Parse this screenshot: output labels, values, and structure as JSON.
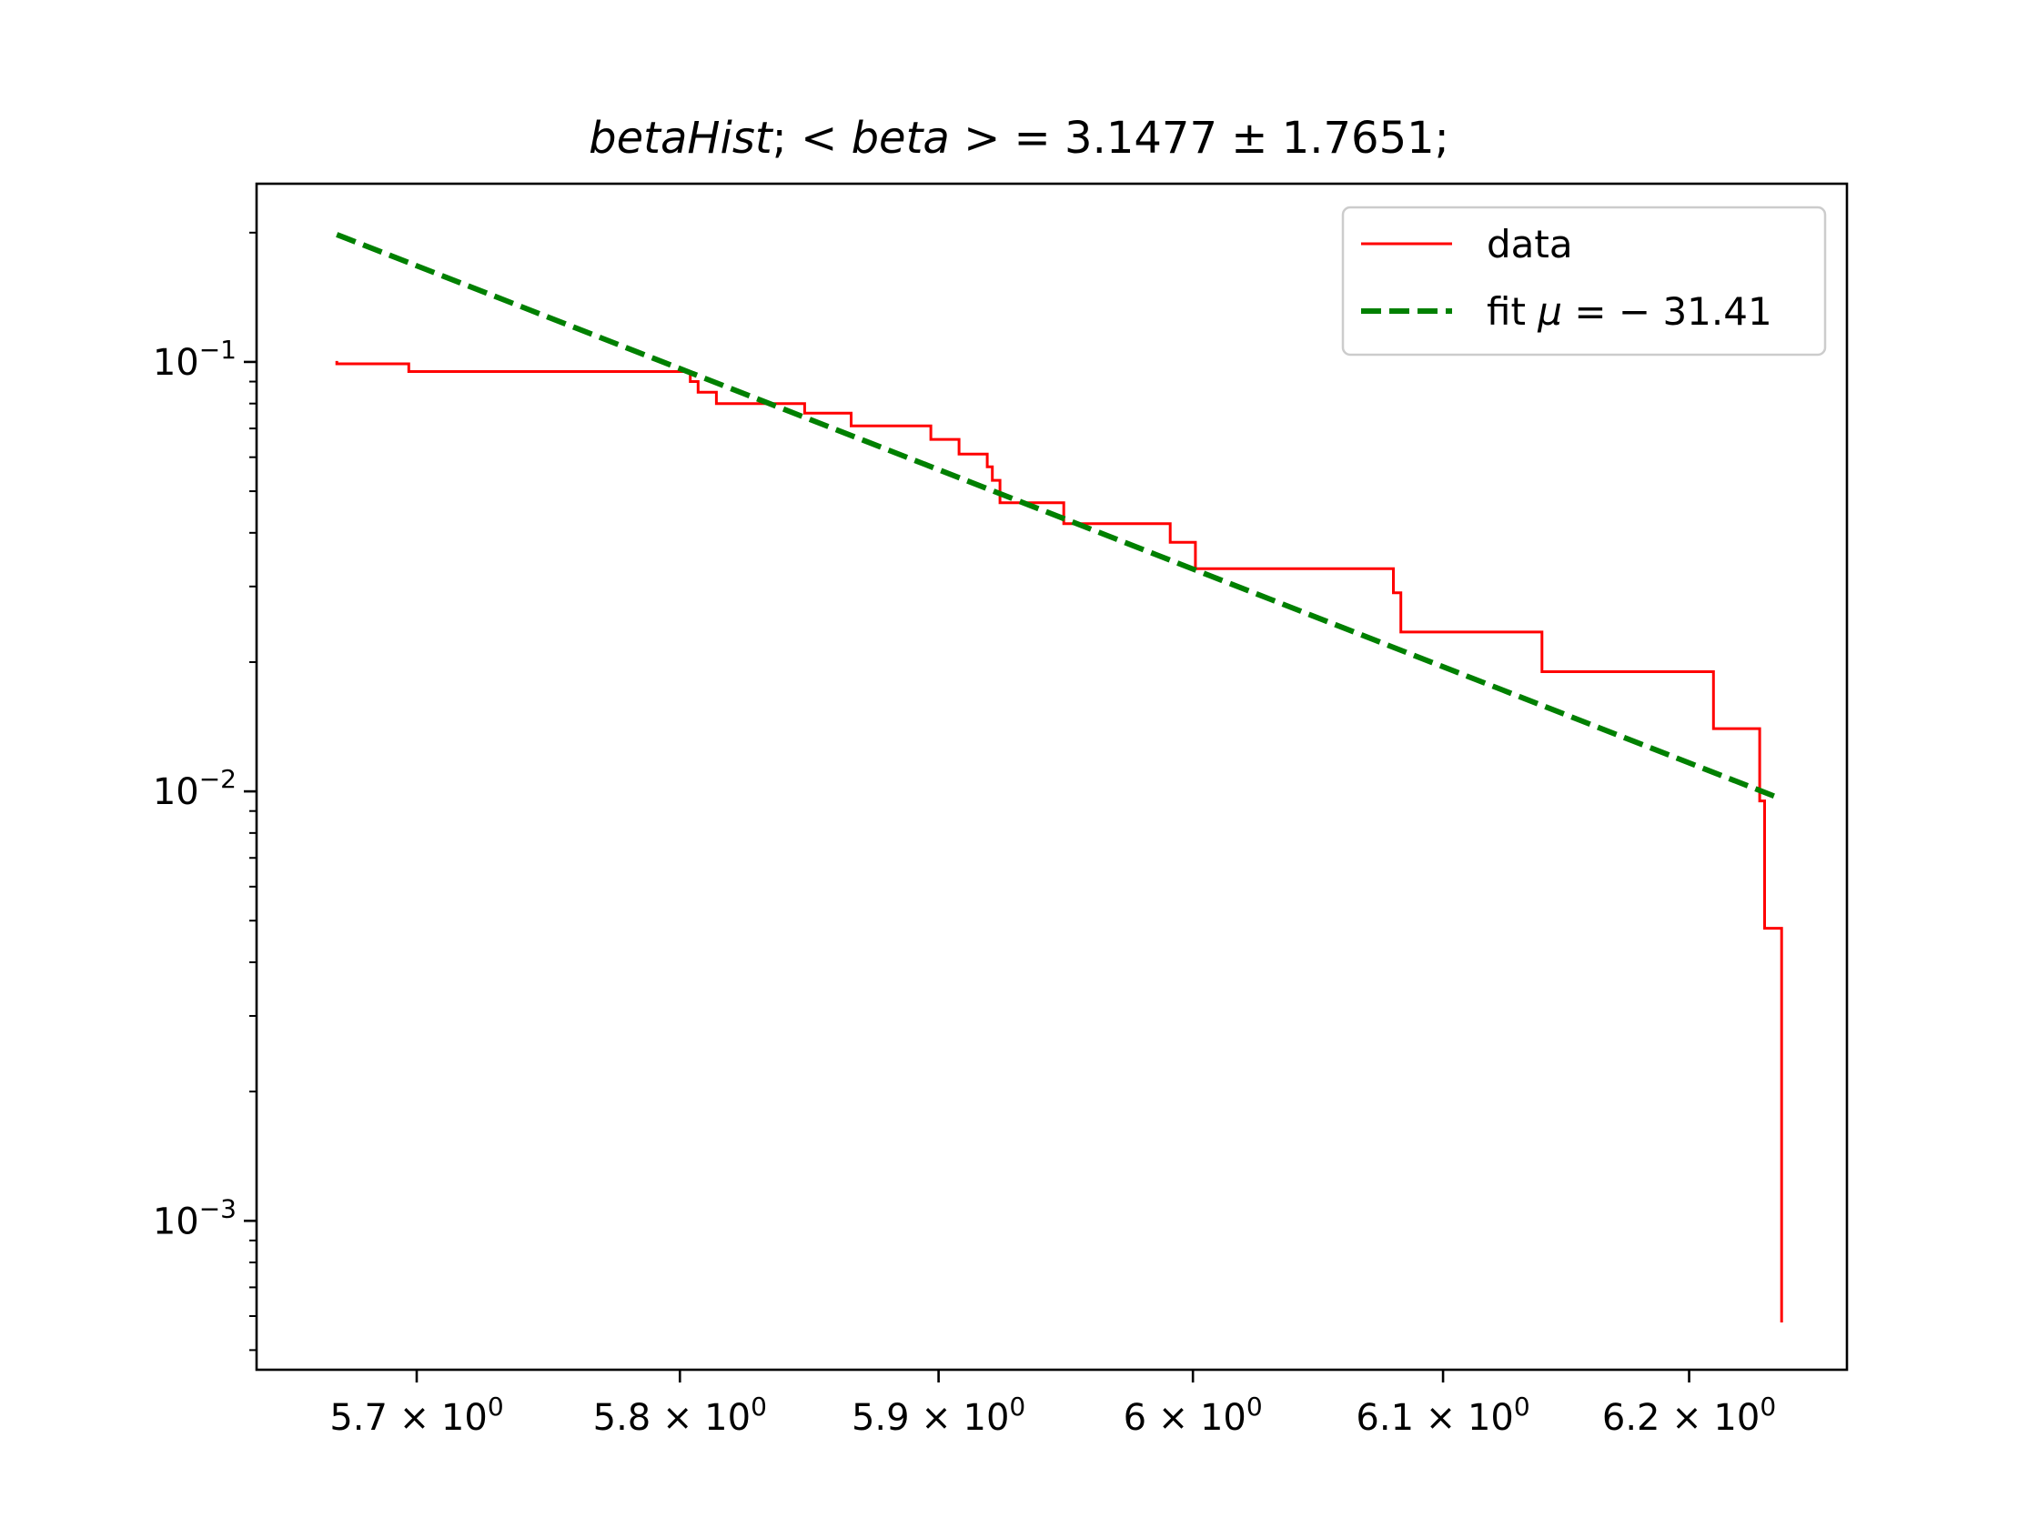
{
  "chart_data": {
    "type": "line",
    "title_parts": {
      "name": "betaHist",
      "sep1": "; ",
      "lt": "< ",
      "var": "beta",
      "gt": " >",
      "eq": " = 3.1477 ± 1.7651;"
    },
    "xscale": "log",
    "yscale": "log",
    "xlim": [
      5.64,
      6.265
    ],
    "ylim": [
      0.00045,
      0.26
    ],
    "x_ticks": [
      {
        "value": 5.7,
        "mant": "5.7 × 10",
        "exp": "0"
      },
      {
        "value": 5.8,
        "mant": "5.8 × 10",
        "exp": "0"
      },
      {
        "value": 5.9,
        "mant": "5.9 × 10",
        "exp": "0"
      },
      {
        "value": 6.0,
        "mant": "6 × 10",
        "exp": "0"
      },
      {
        "value": 6.1,
        "mant": "6.1 × 10",
        "exp": "0"
      },
      {
        "value": 6.2,
        "mant": "6.2 × 10",
        "exp": "0"
      }
    ],
    "y_ticks": [
      {
        "value": 0.1,
        "base": "10",
        "exp": "−1"
      },
      {
        "value": 0.01,
        "base": "10",
        "exp": "−2"
      },
      {
        "value": 0.001,
        "base": "10",
        "exp": "−3"
      }
    ],
    "grid": false,
    "legend_position": "top-right",
    "series": [
      {
        "name": "data",
        "color": "#ff0000",
        "style": "solid",
        "points": [
          [
            5.67,
            0.1005
          ],
          [
            5.67,
            0.099
          ],
          [
            5.697,
            0.099
          ],
          [
            5.697,
            0.095
          ],
          [
            5.804,
            0.095
          ],
          [
            5.804,
            0.09
          ],
          [
            5.807,
            0.09
          ],
          [
            5.807,
            0.085
          ],
          [
            5.814,
            0.085
          ],
          [
            5.814,
            0.08
          ],
          [
            5.848,
            0.08
          ],
          [
            5.848,
            0.076
          ],
          [
            5.866,
            0.076
          ],
          [
            5.866,
            0.071
          ],
          [
            5.897,
            0.071
          ],
          [
            5.897,
            0.066
          ],
          [
            5.908,
            0.066
          ],
          [
            5.908,
            0.061
          ],
          [
            5.919,
            0.061
          ],
          [
            5.919,
            0.057
          ],
          [
            5.921,
            0.057
          ],
          [
            5.921,
            0.053
          ],
          [
            5.924,
            0.053
          ],
          [
            5.924,
            0.047
          ],
          [
            5.949,
            0.047
          ],
          [
            5.949,
            0.042
          ],
          [
            5.991,
            0.042
          ],
          [
            5.991,
            0.038
          ],
          [
            6.001,
            0.038
          ],
          [
            6.001,
            0.033
          ],
          [
            6.08,
            0.033
          ],
          [
            6.08,
            0.029
          ],
          [
            6.083,
            0.029
          ],
          [
            6.083,
            0.0235
          ],
          [
            6.14,
            0.0235
          ],
          [
            6.14,
            0.019
          ],
          [
            6.21,
            0.019
          ],
          [
            6.21,
            0.014
          ],
          [
            6.229,
            0.014
          ],
          [
            6.229,
            0.0095
          ],
          [
            6.231,
            0.0095
          ],
          [
            6.231,
            0.0048
          ],
          [
            6.238,
            0.0048
          ],
          [
            6.238,
            0.00058
          ]
        ]
      },
      {
        "name": "fit μ = − 31.41",
        "name_parts": {
          "prefix": "fit ",
          "mu": "μ",
          "rest": " = − 31.41"
        },
        "color": "#008000",
        "style": "dashed",
        "points": [
          [
            5.67,
            0.198
          ],
          [
            6.238,
            0.0096
          ]
        ]
      }
    ]
  }
}
